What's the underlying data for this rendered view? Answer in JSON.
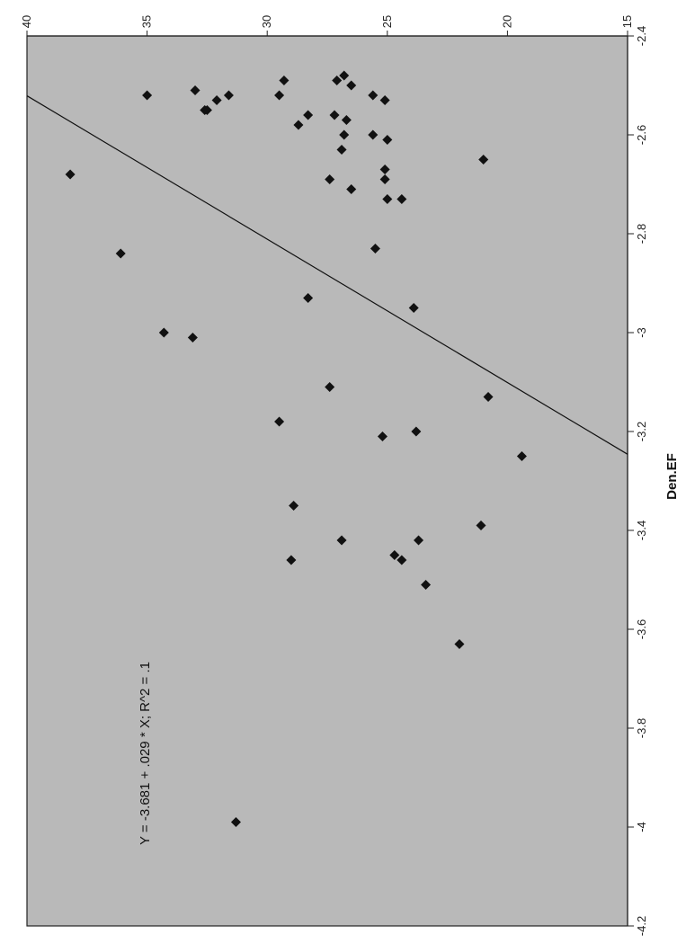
{
  "chart_data": {
    "type": "scatter",
    "orientation": "rotated-90-clockwise",
    "xlabel": "Den.EF",
    "ylabel": "",
    "x_ticks": [
      -2.4,
      -2.6,
      -2.8,
      -3,
      -3.2,
      -3.4,
      -3.6,
      -3.8,
      -4,
      -4.2
    ],
    "y_ticks": [
      15,
      20,
      25,
      30,
      35,
      40
    ],
    "xlim": [
      -4.2,
      -2.4
    ],
    "ylim": [
      15,
      40
    ],
    "grid": false,
    "background": "#b9b9b9",
    "point_color": "#111111",
    "fit_line": {
      "intercept": -3.681,
      "slope": 0.029
    },
    "annotation": "Y = -3.681 + .029 * X; R^2 = .1",
    "points": [
      {
        "x": -2.52,
        "y": 35.0
      },
      {
        "x": -2.51,
        "y": 33.0
      },
      {
        "x": -2.53,
        "y": 32.1
      },
      {
        "x": -2.52,
        "y": 31.6
      },
      {
        "x": -2.55,
        "y": 32.5
      },
      {
        "x": -2.55,
        "y": 32.6
      },
      {
        "x": -2.49,
        "y": 29.3
      },
      {
        "x": -2.52,
        "y": 29.5
      },
      {
        "x": -2.58,
        "y": 28.7
      },
      {
        "x": -2.56,
        "y": 28.3
      },
      {
        "x": -2.56,
        "y": 27.2
      },
      {
        "x": -2.57,
        "y": 26.7
      },
      {
        "x": -2.6,
        "y": 26.8
      },
      {
        "x": -2.63,
        "y": 26.9
      },
      {
        "x": -2.48,
        "y": 26.8
      },
      {
        "x": -2.5,
        "y": 26.5
      },
      {
        "x": -2.49,
        "y": 27.1
      },
      {
        "x": -2.52,
        "y": 25.6
      },
      {
        "x": -2.53,
        "y": 25.1
      },
      {
        "x": -2.6,
        "y": 25.6
      },
      {
        "x": -2.61,
        "y": 25.0
      },
      {
        "x": -2.67,
        "y": 25.1
      },
      {
        "x": -2.71,
        "y": 26.5
      },
      {
        "x": -2.69,
        "y": 27.4
      },
      {
        "x": -2.69,
        "y": 25.1
      },
      {
        "x": -2.65,
        "y": 21.0
      },
      {
        "x": -2.73,
        "y": 24.4
      },
      {
        "x": -2.73,
        "y": 25.0
      },
      {
        "x": -2.83,
        "y": 25.5
      },
      {
        "x": -2.68,
        "y": 38.2
      },
      {
        "x": -2.84,
        "y": 36.1
      },
      {
        "x": -2.93,
        "y": 28.3
      },
      {
        "x": -2.95,
        "y": 23.9
      },
      {
        "x": -3.0,
        "y": 34.3
      },
      {
        "x": -3.01,
        "y": 33.1
      },
      {
        "x": -3.11,
        "y": 27.4
      },
      {
        "x": -3.13,
        "y": 20.8
      },
      {
        "x": -3.18,
        "y": 29.5
      },
      {
        "x": -3.2,
        "y": 23.8
      },
      {
        "x": -3.21,
        "y": 25.2
      },
      {
        "x": -3.25,
        "y": 19.4
      },
      {
        "x": -3.35,
        "y": 28.9
      },
      {
        "x": -3.39,
        "y": 21.1
      },
      {
        "x": -3.42,
        "y": 26.9
      },
      {
        "x": -3.42,
        "y": 23.7
      },
      {
        "x": -3.45,
        "y": 24.7
      },
      {
        "x": -3.46,
        "y": 24.4
      },
      {
        "x": -3.46,
        "y": 29.0
      },
      {
        "x": -3.51,
        "y": 23.4
      },
      {
        "x": -3.63,
        "y": 22.0
      },
      {
        "x": -3.99,
        "y": 31.3
      }
    ]
  }
}
